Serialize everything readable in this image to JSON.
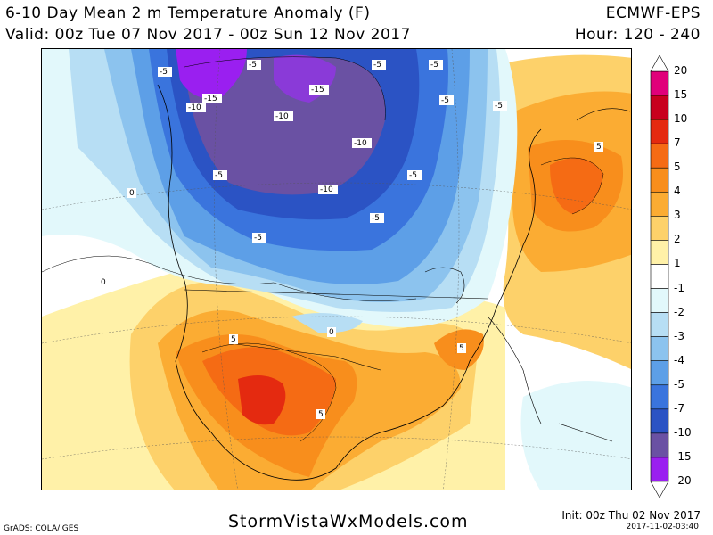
{
  "header": {
    "title": "6-10 Day Mean 2 m Temperature Anomaly (F)",
    "valid": "Valid: 00z Tue 07 Nov 2017 - 00z Sun 12 Nov 2017",
    "model": "ECMWF-EPS",
    "hour": "Hour: 120 - 240"
  },
  "colorbar": {
    "levels": [
      {
        "label": "20",
        "color": "#e0007a"
      },
      {
        "label": "15",
        "color": "#c8001e"
      },
      {
        "label": "10",
        "color": "#e42a10"
      },
      {
        "label": "7",
        "color": "#f56b14"
      },
      {
        "label": "5",
        "color": "#f88e1c"
      },
      {
        "label": "4",
        "color": "#fbac33"
      },
      {
        "label": "3",
        "color": "#fdd16a"
      },
      {
        "label": "2",
        "color": "#fff1a8"
      },
      {
        "label": "1",
        "color": "#ffffff"
      },
      {
        "label": "-1",
        "color": "#e2f8fb"
      },
      {
        "label": "-2",
        "color": "#b7def4"
      },
      {
        "label": "-3",
        "color": "#8cc3ee"
      },
      {
        "label": "-4",
        "color": "#5d9fe7"
      },
      {
        "label": "-5",
        "color": "#3a74dd"
      },
      {
        "label": "-7",
        "color": "#2b53c4"
      },
      {
        "label": "-10",
        "color": "#6a51a3"
      },
      {
        "label": "-15",
        "color": "#9a1ff0"
      },
      {
        "label": "-20",
        "color": "#ffffff"
      }
    ]
  },
  "contour_labels": [
    "-5",
    "-5",
    "-5",
    "-5",
    "-5",
    "-15",
    "-15",
    "-10",
    "-10",
    "-10",
    "-10",
    "-5",
    "-5",
    "-5",
    "-5",
    "-5",
    "0",
    "0",
    "0",
    "5",
    "5",
    "5",
    "5"
  ],
  "footer": {
    "grads": "GrADS: COLA/IGES",
    "site": "StormVistaWxModels.com",
    "init": "Init: 00z Thu 02 Nov 2017",
    "stamp": "2017-11-02-03:40"
  }
}
